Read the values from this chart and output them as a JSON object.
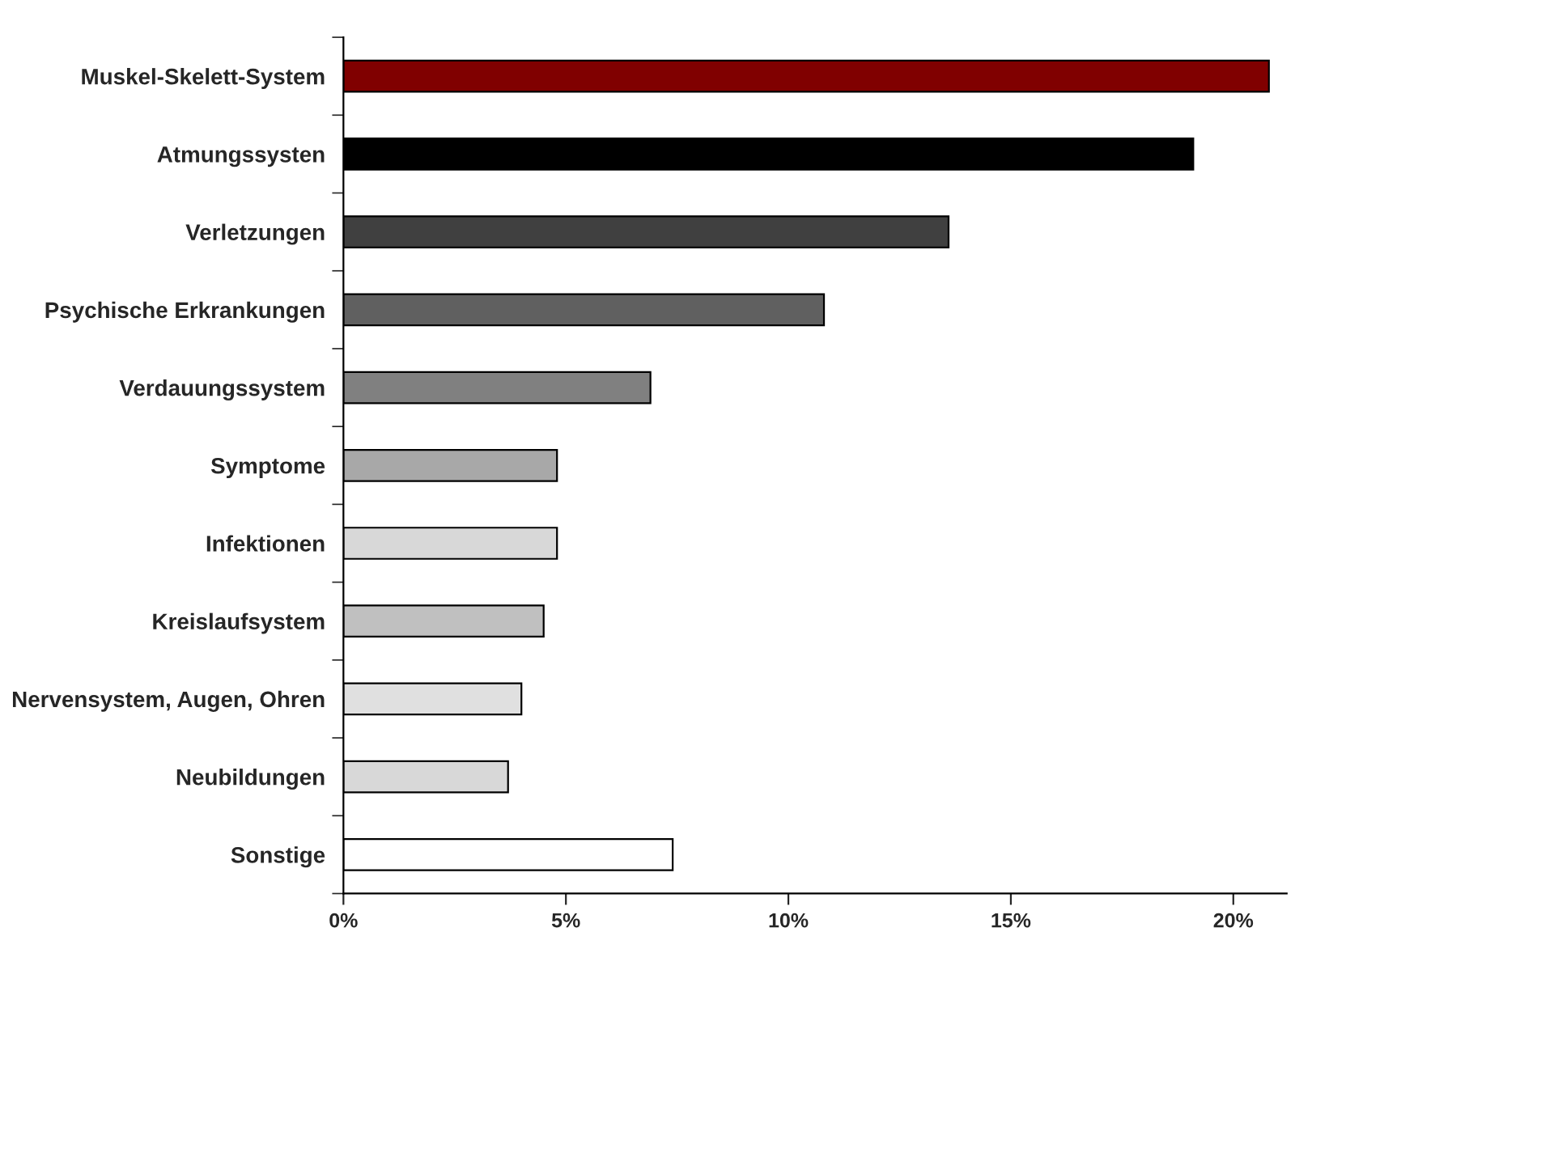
{
  "chart_data": {
    "type": "bar",
    "orientation": "horizontal",
    "categories": [
      "Muskel-Skelett-System",
      "Atmungssysten",
      "Verletzungen",
      "Psychische Erkrankungen",
      "Verdauungssystem",
      "Symptome",
      "Infektionen",
      "Kreislaufsystem",
      "Nervensystem, Augen, Ohren",
      "Neubildungen",
      "Sonstige"
    ],
    "values": [
      20.8,
      19.1,
      13.6,
      10.8,
      6.9,
      4.8,
      4.8,
      4.5,
      4.0,
      3.7,
      7.4
    ],
    "colors": [
      "#800000",
      "#000000",
      "#404040",
      "#606060",
      "#808080",
      "#a8a8a8",
      "#d8d8d8",
      "#c0c0c0",
      "#e0e0e0",
      "#d8d8d8",
      "#ffffff"
    ],
    "xlim": [
      0,
      21.2
    ],
    "xticks": [
      {
        "value": 0,
        "label": "0%"
      },
      {
        "value": 5,
        "label": "5%"
      },
      {
        "value": 10,
        "label": "10%"
      },
      {
        "value": 15,
        "label": "15%"
      },
      {
        "value": 20,
        "label": "20%"
      }
    ],
    "grid": false,
    "legend": false
  }
}
